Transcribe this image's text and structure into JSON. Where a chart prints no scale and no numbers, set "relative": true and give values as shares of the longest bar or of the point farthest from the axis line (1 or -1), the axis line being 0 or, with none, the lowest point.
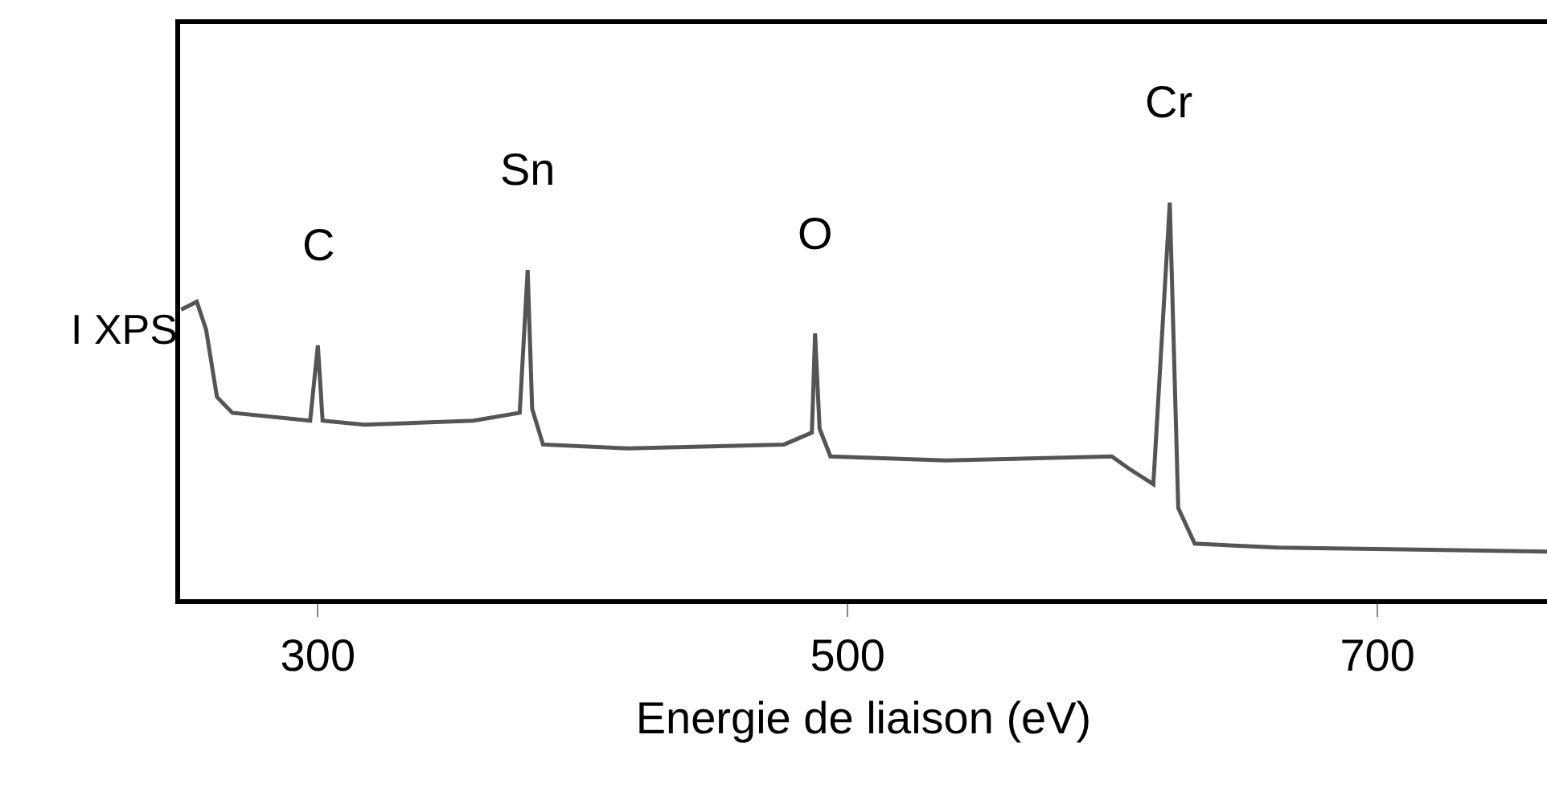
{
  "chart_data": {
    "type": "line",
    "relative": true,
    "xlabel": "Energie de liaison (eV)",
    "ylabel": "I XPS",
    "color": "#555555",
    "x": [
      248.4,
      254.3,
      257.8,
      261.9,
      267.7,
      297.1,
      300,
      301.8,
      317.6,
      358.7,
      376.2,
      379.2,
      380.9,
      385.0,
      417.3,
      476.0,
      486.5,
      487.7,
      489.4,
      493.5,
      537,
      599.7,
      606,
      615.4,
      621.6,
      624.8,
      631,
      662.4,
      764
    ],
    "values": [
      0.73,
      0.75,
      0.68,
      0.51,
      0.47,
      0.45,
      0.64,
      0.45,
      0.44,
      0.45,
      0.47,
      0.83,
      0.48,
      0.39,
      0.38,
      0.39,
      0.42,
      0.67,
      0.43,
      0.36,
      0.35,
      0.36,
      0.33,
      0.29,
      1.0,
      0.23,
      0.14,
      0.13,
      0.12
    ],
    "xlim": [
      248,
      764
    ],
    "xticks": [
      300,
      500,
      700
    ],
    "legend": false,
    "marker": "none",
    "line_style": "solid",
    "annotations": [
      {
        "text": "C",
        "x": 300,
        "y": 0.64
      },
      {
        "text": "Sn",
        "x": 379.2,
        "y": 0.83
      },
      {
        "text": "O",
        "x": 487.7,
        "y": 0.67
      },
      {
        "text": "Cr",
        "x": 621.6,
        "y": 1.0
      }
    ]
  }
}
